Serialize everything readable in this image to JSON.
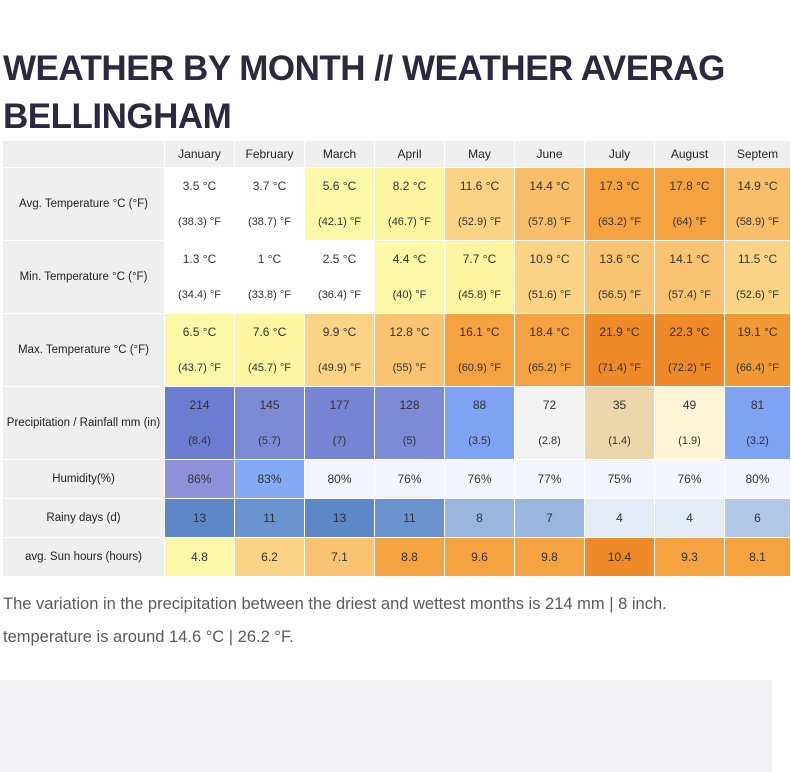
{
  "page": {
    "title_line1": "WEATHER BY MONTH // WEATHER AVERAG",
    "title_line2": "BELLINGHAM"
  },
  "table": {
    "months": [
      "January",
      "February",
      "March",
      "April",
      "May",
      "June",
      "July",
      "August",
      "Septem"
    ],
    "rows": [
      {
        "label": "Avg. Temperature °C (°F)",
        "type": "double",
        "cells": [
          {
            "c": "3.5 °C",
            "f": "(38.3) °F",
            "bg": "#ffffff"
          },
          {
            "c": "3.7 °C",
            "f": "(38.7) °F",
            "bg": "#ffffff"
          },
          {
            "c": "5.6 °C",
            "f": "(42.1) °F",
            "bg": "#fdf7a8"
          },
          {
            "c": "8.2 °C",
            "f": "(46.7) °F",
            "bg": "#fdf5a0"
          },
          {
            "c": "11.6 °C",
            "f": "(52.9) °F",
            "bg": "#fbd385"
          },
          {
            "c": "14.4 °C",
            "f": "(57.8) °F",
            "bg": "#f9be6a"
          },
          {
            "c": "17.3 °C",
            "f": "(63.2) °F",
            "bg": "#f4a340"
          },
          {
            "c": "17.8 °C",
            "f": "(64) °F",
            "bg": "#f4a340"
          },
          {
            "c": "14.9 °C",
            "f": "(58.9) °F",
            "bg": "#f9be6a"
          }
        ]
      },
      {
        "label": "Min. Temperature °C (°F)",
        "type": "double",
        "cells": [
          {
            "c": "1.3 °C",
            "f": "(34.4) °F",
            "bg": "#ffffff"
          },
          {
            "c": "1 °C",
            "f": "(33.8) °F",
            "bg": "#ffffff"
          },
          {
            "c": "2.5 °C",
            "f": "(36.4) °F",
            "bg": "#ffffff"
          },
          {
            "c": "4.4 °C",
            "f": "(40) °F",
            "bg": "#fdf7a8"
          },
          {
            "c": "7.7 °C",
            "f": "(45.8) °F",
            "bg": "#fdf5a0"
          },
          {
            "c": "10.9 °C",
            "f": "(51.6) °F",
            "bg": "#fbd385"
          },
          {
            "c": "13.6 °C",
            "f": "(56.5) °F",
            "bg": "#f9c372"
          },
          {
            "c": "14.1 °C",
            "f": "(57.4) °F",
            "bg": "#f9c372"
          },
          {
            "c": "11.5 °C",
            "f": "(52.6) °F",
            "bg": "#fbd385"
          }
        ]
      },
      {
        "label": "Max. Temperature °C (°F)",
        "type": "double",
        "cells": [
          {
            "c": "6.5 °C",
            "f": "(43.7) °F",
            "bg": "#fdf7a8"
          },
          {
            "c": "7.6 °C",
            "f": "(45.7) °F",
            "bg": "#fdf5a0"
          },
          {
            "c": "9.9 °C",
            "f": "(49.9) °F",
            "bg": "#fbd385"
          },
          {
            "c": "12.8 °C",
            "f": "(55) °F",
            "bg": "#f9c372"
          },
          {
            "c": "16.1 °C",
            "f": "(60.9) °F",
            "bg": "#f4a340"
          },
          {
            "c": "18.4 °C",
            "f": "(65.2) °F",
            "bg": "#f4a340"
          },
          {
            "c": "21.9 °C",
            "f": "(71.4) °F",
            "bg": "#ee8a28"
          },
          {
            "c": "22.3 °C",
            "f": "(72.2) °F",
            "bg": "#ee8a28"
          },
          {
            "c": "19.1 °C",
            "f": "(66.4) °F",
            "bg": "#f19a35"
          }
        ]
      },
      {
        "label": "Precipitation / Rainfall mm (in)",
        "type": "double",
        "cells": [
          {
            "c": "214",
            "f": "(8.4)",
            "bg": "#6b7cd1"
          },
          {
            "c": "145",
            "f": "(5.7)",
            "bg": "#7d8ad6"
          },
          {
            "c": "177",
            "f": "(7)",
            "bg": "#7684d3"
          },
          {
            "c": "128",
            "f": "(5)",
            "bg": "#7d8ad6"
          },
          {
            "c": "88",
            "f": "(3.5)",
            "bg": "#7ea3f2"
          },
          {
            "c": "72",
            "f": "(2.8)",
            "bg": "#f2f2f2"
          },
          {
            "c": "35",
            "f": "(1.4)",
            "bg": "#ecd7ac"
          },
          {
            "c": "49",
            "f": "(1.9)",
            "bg": "#fff4d6"
          },
          {
            "c": "81",
            "f": "(3.2)",
            "bg": "#7ea3f2"
          }
        ]
      },
      {
        "label": "Humidity(%)",
        "type": "single",
        "cells": [
          {
            "v": "86%",
            "bg": "#8d92d9"
          },
          {
            "v": "83%",
            "bg": "#85aaf5"
          },
          {
            "v": "80%",
            "bg": "#f2f5fd"
          },
          {
            "v": "76%",
            "bg": "#f2f5fd"
          },
          {
            "v": "76%",
            "bg": "#f2f5fd"
          },
          {
            "v": "77%",
            "bg": "#f2f5fd"
          },
          {
            "v": "75%",
            "bg": "#f2f5fd"
          },
          {
            "v": "76%",
            "bg": "#f2f5fd"
          },
          {
            "v": "80%",
            "bg": "#f2f5fd"
          }
        ]
      },
      {
        "label": "Rainy days (d)",
        "type": "single",
        "cells": [
          {
            "v": "13",
            "bg": "#5e87c8"
          },
          {
            "v": "11",
            "bg": "#6a93cf"
          },
          {
            "v": "13",
            "bg": "#5e87c8"
          },
          {
            "v": "11",
            "bg": "#6a93cf"
          },
          {
            "v": "8",
            "bg": "#9ab5de"
          },
          {
            "v": "7",
            "bg": "#9ab5de"
          },
          {
            "v": "4",
            "bg": "#e3ecf7"
          },
          {
            "v": "4",
            "bg": "#e3ecf7"
          },
          {
            "v": "6",
            "bg": "#b3c8e6"
          }
        ]
      },
      {
        "label": "avg. Sun hours (hours)",
        "type": "single",
        "cells": [
          {
            "v": "4.8",
            "bg": "#fdf7a8"
          },
          {
            "v": "6.2",
            "bg": "#fbd385"
          },
          {
            "v": "7.1",
            "bg": "#f9c372"
          },
          {
            "v": "8.8",
            "bg": "#f4a340"
          },
          {
            "v": "9.6",
            "bg": "#f4a340"
          },
          {
            "v": "9.8",
            "bg": "#f4a340"
          },
          {
            "v": "10.4",
            "bg": "#ee8a28"
          },
          {
            "v": "9.3",
            "bg": "#f4a340"
          },
          {
            "v": "8.1",
            "bg": "#f4a340"
          }
        ]
      }
    ]
  },
  "footer": {
    "line1": "The variation in the precipitation between the driest and wettest months is 214 mm | 8 inch.",
    "line2": "temperature is around 14.6 °C | 26.2 °F."
  }
}
